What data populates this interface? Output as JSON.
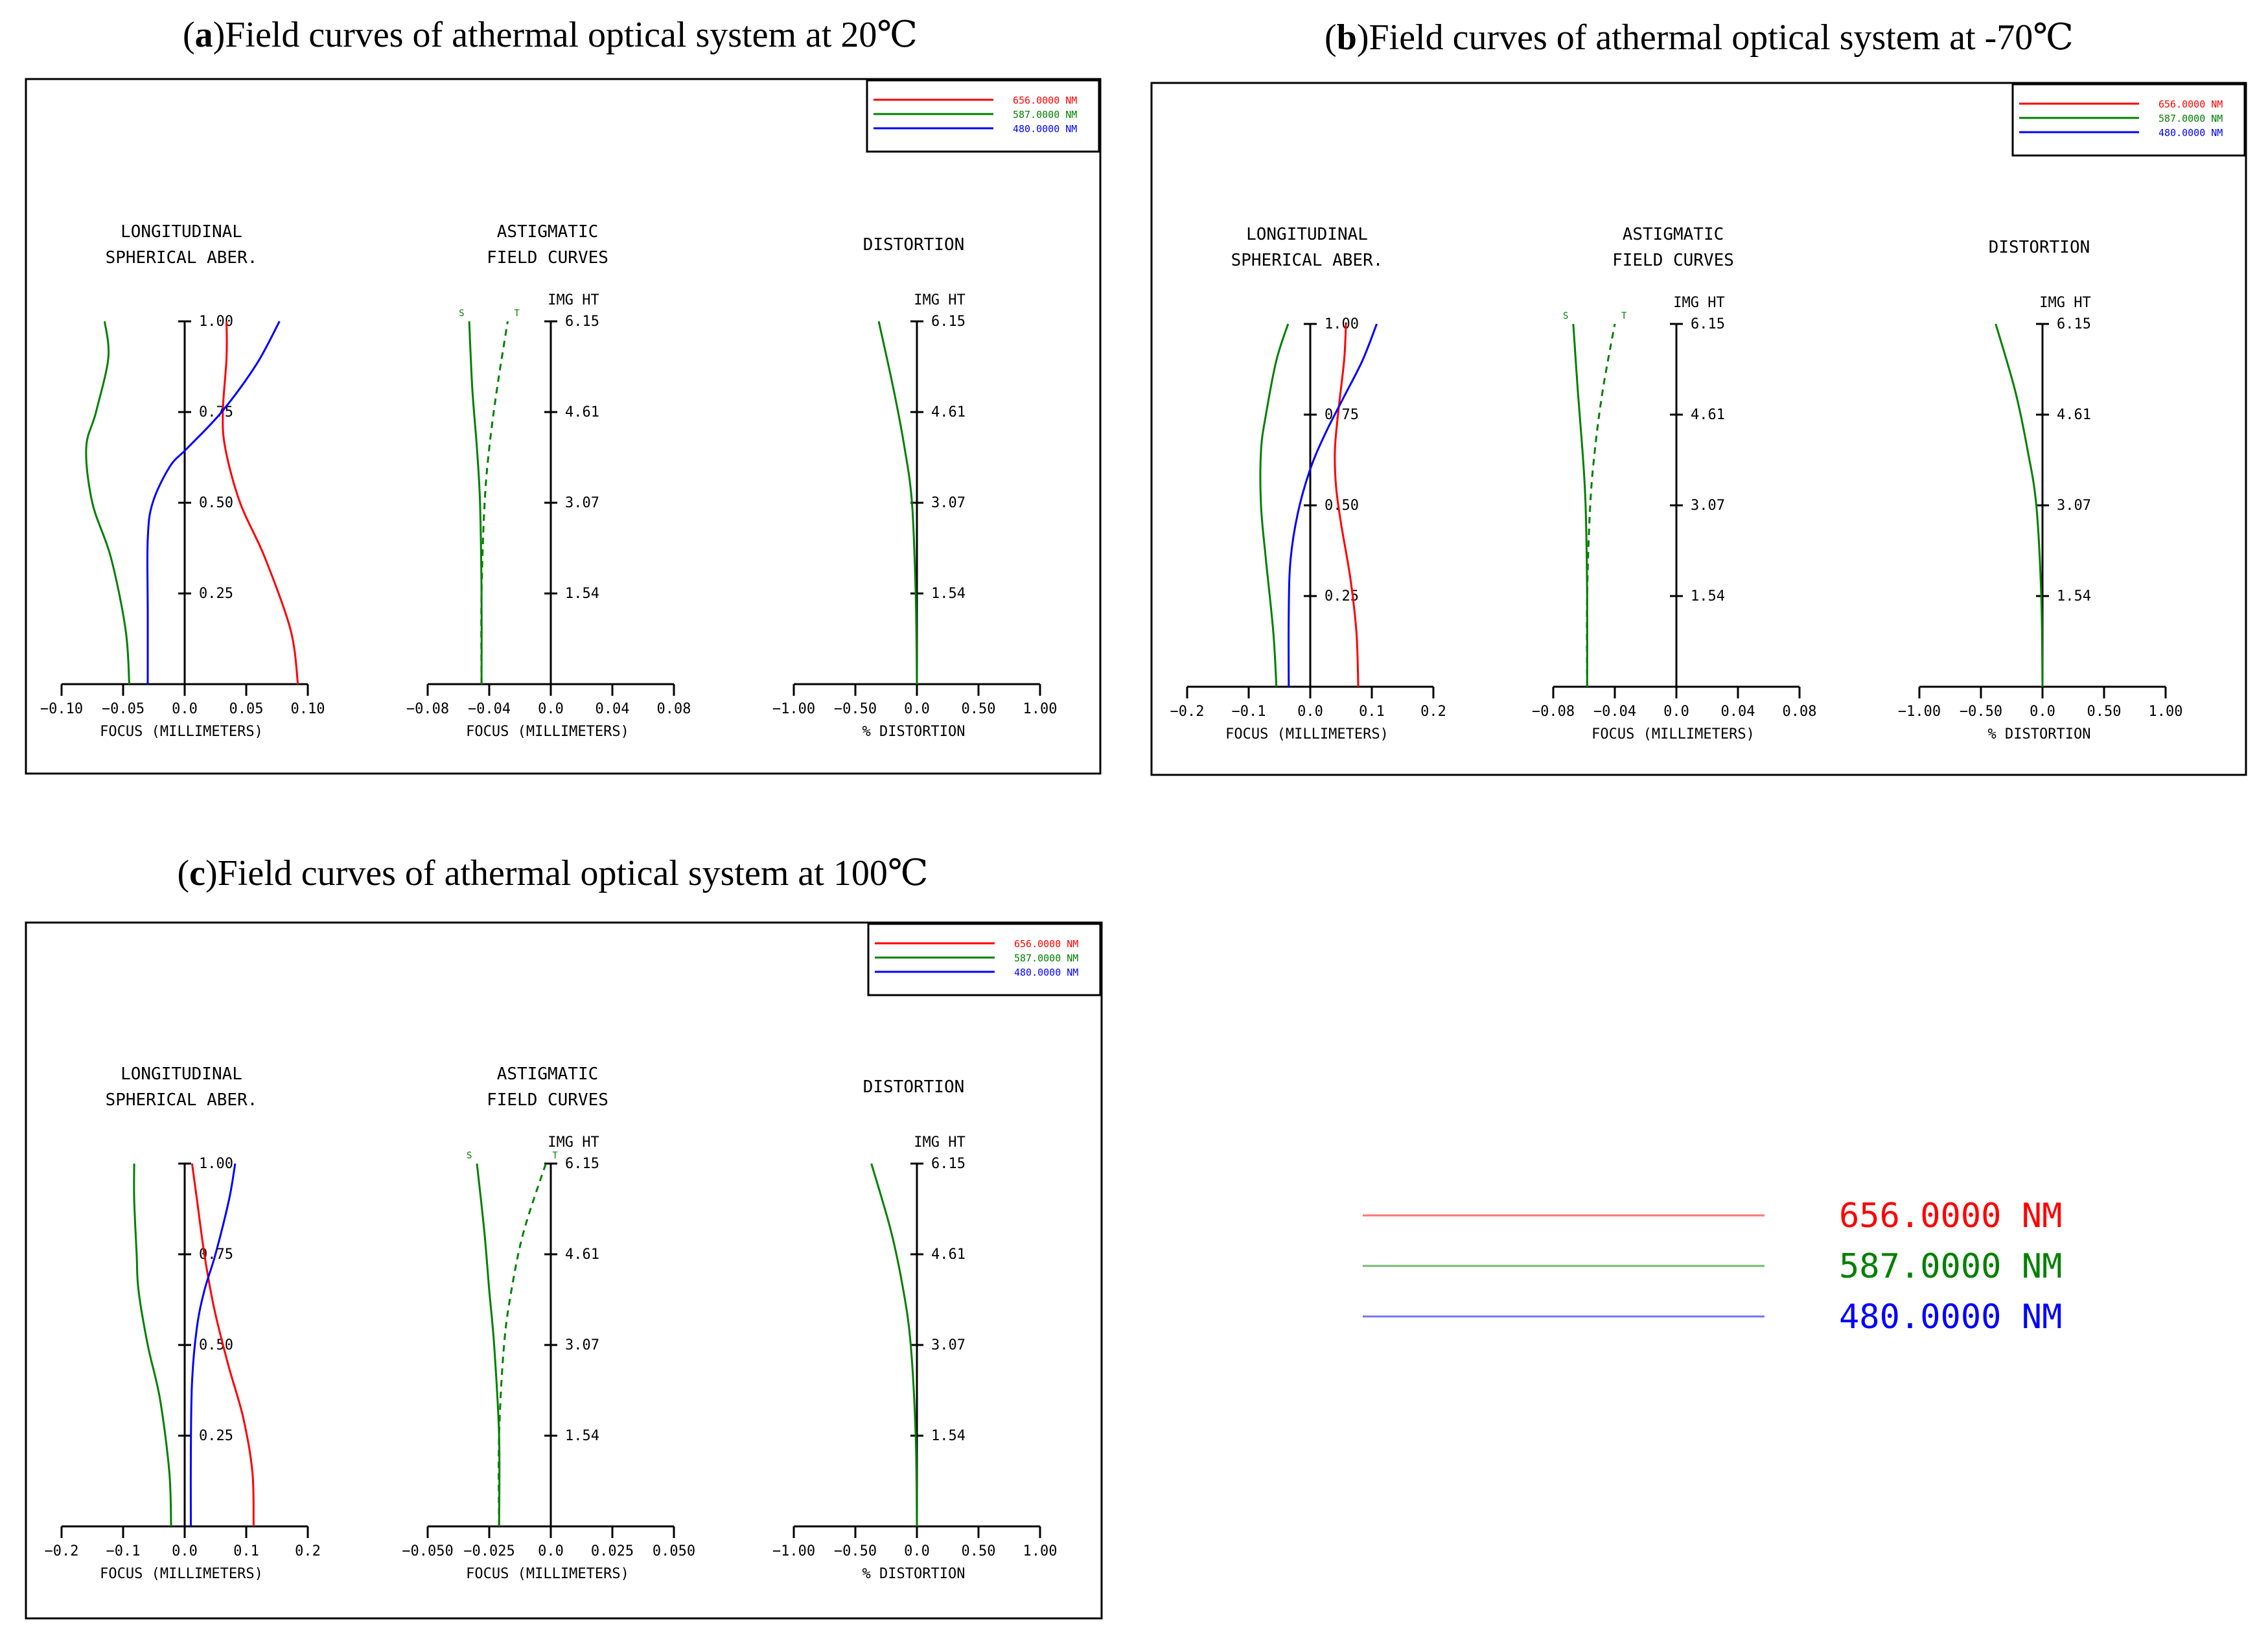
{
  "colors": {
    "red": "#ff0000",
    "green": "#008000",
    "blue": "#0000ff",
    "axis": "#000000"
  },
  "legend": [
    {
      "label": "656.0000 NM",
      "color": "#ff0000"
    },
    {
      "label": "587.0000 NM",
      "color": "#008000"
    },
    {
      "label": "480.0000 NM",
      "color": "#0000ff"
    }
  ],
  "big_legend": [
    {
      "label": "656.0000 NM",
      "color": "#ff0000"
    },
    {
      "label": "587.0000 NM",
      "color": "#008000"
    },
    {
      "label": "480.0000 NM",
      "color": "#0000ff"
    }
  ],
  "common": {
    "lsa_title_1": "LONGITUDINAL",
    "lsa_title_2": "SPHERICAL ABER.",
    "ast_title_1": "ASTIGMATIC",
    "ast_title_2": "FIELD CURVES",
    "dist_title": "DISTORTION",
    "img_ht": "IMG HT",
    "focus_label": "FOCUS (MILLIMETERS)",
    "dist_label": "% DISTORTION",
    "s_label": "S",
    "t_label": "T"
  },
  "chart_data": [
    {
      "id": "a",
      "title_prefix": "(",
      "title_letter": "a",
      "title_rest": ")Field curves of athermal optical system at 20℃",
      "type": "line",
      "lsa": {
        "xlim": [
          -0.1,
          0.1
        ],
        "xticks": [
          "-0.10",
          "-0.05",
          "0.0",
          "0.05",
          "0.10"
        ],
        "yticks": [
          "0.25",
          "0.50",
          "0.75",
          "1.00"
        ],
        "series": [
          {
            "name": "656.0000 NM",
            "x": [
              0.092,
              0.086,
              0.065,
              0.045,
              0.033,
              0.031,
              0.034,
              0.034
            ],
            "y": [
              0.0,
              0.15,
              0.35,
              0.5,
              0.65,
              0.75,
              0.9,
              1.0
            ]
          },
          {
            "name": "587.0000 NM",
            "x": [
              -0.045,
              -0.048,
              -0.06,
              -0.075,
              -0.08,
              -0.072,
              -0.062,
              -0.065
            ],
            "y": [
              0.0,
              0.15,
              0.35,
              0.5,
              0.65,
              0.75,
              0.9,
              1.0
            ]
          },
          {
            "name": "480.0000 NM",
            "x": [
              -0.03,
              -0.03,
              -0.03,
              -0.026,
              -0.012,
              0.002,
              0.03,
              0.058,
              0.077
            ],
            "y": [
              0.0,
              0.2,
              0.4,
              0.5,
              0.6,
              0.65,
              0.75,
              0.88,
              1.0
            ]
          }
        ]
      },
      "ast": {
        "xlim": [
          -0.08,
          0.08
        ],
        "xticks": [
          "-0.08",
          "-0.04",
          "0.0",
          "0.04",
          "0.08"
        ],
        "yticks": [
          "1.54",
          "3.07",
          "4.61",
          "6.15"
        ],
        "ymax": 6.15,
        "series": [
          {
            "name": "S",
            "dash": false,
            "x": [
              -0.045,
              -0.045,
              -0.046,
              -0.048,
              -0.051,
              -0.053
            ],
            "y": [
              0.0,
              1.54,
              3.07,
              4.0,
              5.0,
              6.15
            ]
          },
          {
            "name": "T",
            "dash": true,
            "x": [
              -0.045,
              -0.045,
              -0.043,
              -0.04,
              -0.035,
              -0.028
            ],
            "y": [
              0.0,
              1.54,
              3.07,
              4.0,
              5.0,
              6.15
            ]
          }
        ]
      },
      "dist": {
        "xlim": [
          -1.0,
          1.0
        ],
        "xticks": [
          "-1.00",
          "-0.50",
          "0.0",
          "0.50",
          "1.00"
        ],
        "yticks": [
          "1.54",
          "3.07",
          "4.61",
          "6.15"
        ],
        "ymax": 6.15,
        "series": [
          {
            "name": "587.0000 NM",
            "x": [
              0.0,
              -0.01,
              -0.04,
              -0.1,
              -0.19,
              -0.31
            ],
            "y": [
              0.0,
              1.54,
              3.07,
              4.0,
              5.0,
              6.15
            ]
          }
        ]
      }
    },
    {
      "id": "b",
      "title_prefix": "(",
      "title_letter": "b",
      "title_rest": ")Field curves  of athermal optical system at -70℃",
      "type": "line",
      "lsa": {
        "xlim": [
          -0.2,
          0.2
        ],
        "xticks": [
          "-0.2",
          "-0.1",
          "0.0",
          "0.1",
          "0.2"
        ],
        "yticks": [
          "0.25",
          "0.50",
          "0.75",
          "1.00"
        ],
        "series": [
          {
            "name": "656.0000 NM",
            "x": [
              0.078,
              0.075,
              0.065,
              0.05,
              0.042,
              0.04,
              0.045,
              0.055,
              0.058
            ],
            "y": [
              0.0,
              0.15,
              0.3,
              0.45,
              0.55,
              0.65,
              0.75,
              0.9,
              1.0
            ]
          },
          {
            "name": "587.0000 NM",
            "x": [
              -0.055,
              -0.06,
              -0.072,
              -0.08,
              -0.08,
              -0.072,
              -0.055,
              -0.036
            ],
            "y": [
              0.0,
              0.15,
              0.35,
              0.5,
              0.65,
              0.75,
              0.9,
              1.0
            ]
          },
          {
            "name": "480.0000 NM",
            "x": [
              -0.035,
              -0.035,
              -0.032,
              -0.02,
              0.0,
              0.025,
              0.055,
              0.085,
              0.108
            ],
            "y": [
              0.0,
              0.2,
              0.35,
              0.48,
              0.6,
              0.7,
              0.8,
              0.9,
              1.0
            ]
          }
        ]
      },
      "ast": {
        "xlim": [
          -0.08,
          0.08
        ],
        "xticks": [
          "-0.08",
          "-0.04",
          "0.0",
          "0.04",
          "0.08"
        ],
        "yticks": [
          "1.54",
          "3.07",
          "4.61",
          "6.15"
        ],
        "ymax": 6.15,
        "series": [
          {
            "name": "S",
            "dash": false,
            "x": [
              -0.058,
              -0.058,
              -0.059,
              -0.061,
              -0.064,
              -0.067
            ],
            "y": [
              0.0,
              1.54,
              3.07,
              4.0,
              5.0,
              6.15
            ]
          },
          {
            "name": "T",
            "dash": true,
            "x": [
              -0.058,
              -0.058,
              -0.056,
              -0.053,
              -0.048,
              -0.04
            ],
            "y": [
              0.0,
              1.54,
              3.07,
              4.0,
              5.0,
              6.15
            ]
          }
        ]
      },
      "dist": {
        "xlim": [
          -1.0,
          1.0
        ],
        "xticks": [
          "-1.00",
          "-0.50",
          "0.0",
          "0.50",
          "1.00"
        ],
        "yticks": [
          "1.54",
          "3.07",
          "4.61",
          "6.15"
        ],
        "ymax": 6.15,
        "series": [
          {
            "name": "587.0000 NM",
            "x": [
              0.0,
              -0.01,
              -0.05,
              -0.12,
              -0.22,
              -0.38
            ],
            "y": [
              0.0,
              1.54,
              3.07,
              4.0,
              5.0,
              6.15
            ]
          }
        ]
      }
    },
    {
      "id": "c",
      "title_prefix": "(",
      "title_letter": "c",
      "title_rest": ")Field curves  of athermal optical system at 100℃",
      "type": "line",
      "lsa": {
        "xlim": [
          -0.2,
          0.2
        ],
        "xticks": [
          "-0.2",
          "-0.1",
          "0.0",
          "0.1",
          "0.2"
        ],
        "yticks": [
          "0.25",
          "0.50",
          "0.75",
          "1.00"
        ],
        "series": [
          {
            "name": "656.0000 NM",
            "x": [
              0.112,
              0.11,
              0.095,
              0.07,
              0.048,
              0.032,
              0.02,
              0.012
            ],
            "y": [
              0.0,
              0.15,
              0.3,
              0.45,
              0.6,
              0.75,
              0.9,
              1.0
            ]
          },
          {
            "name": "587.0000 NM",
            "x": [
              -0.022,
              -0.025,
              -0.04,
              -0.06,
              -0.075,
              -0.078,
              -0.082,
              -0.082
            ],
            "y": [
              0.0,
              0.15,
              0.35,
              0.5,
              0.65,
              0.75,
              0.9,
              1.0
            ]
          },
          {
            "name": "480.0000 NM",
            "x": [
              0.01,
              0.01,
              0.012,
              0.02,
              0.032,
              0.05,
              0.072,
              0.082
            ],
            "y": [
              0.0,
              0.2,
              0.4,
              0.55,
              0.65,
              0.75,
              0.9,
              1.0
            ]
          }
        ]
      },
      "ast": {
        "xlim": [
          -0.05,
          0.05
        ],
        "xticks": [
          "-0.050",
          "-0.025",
          "0.0",
          "0.025",
          "0.050"
        ],
        "yticks": [
          "1.54",
          "3.07",
          "4.61",
          "6.15"
        ],
        "ymax": 6.15,
        "series": [
          {
            "name": "S",
            "dash": false,
            "x": [
              -0.021,
              -0.021,
              -0.023,
              -0.025,
              -0.027,
              -0.03
            ],
            "y": [
              0.0,
              1.54,
              3.07,
              4.0,
              5.0,
              6.15
            ]
          },
          {
            "name": "T",
            "dash": true,
            "x": [
              -0.021,
              -0.021,
              -0.019,
              -0.016,
              -0.011,
              -0.002
            ],
            "y": [
              0.0,
              1.54,
              3.07,
              4.0,
              5.0,
              6.15
            ]
          }
        ]
      },
      "dist": {
        "xlim": [
          -1.0,
          1.0
        ],
        "xticks": [
          "-1.00",
          "-0.50",
          "0.0",
          "0.50",
          "1.00"
        ],
        "yticks": [
          "1.54",
          "3.07",
          "4.61",
          "6.15"
        ],
        "ymax": 6.15,
        "series": [
          {
            "name": "587.0000 NM",
            "x": [
              0.0,
              -0.01,
              -0.05,
              -0.11,
              -0.21,
              -0.37
            ],
            "y": [
              0.0,
              1.54,
              3.07,
              4.0,
              5.0,
              6.15
            ]
          }
        ]
      }
    }
  ]
}
